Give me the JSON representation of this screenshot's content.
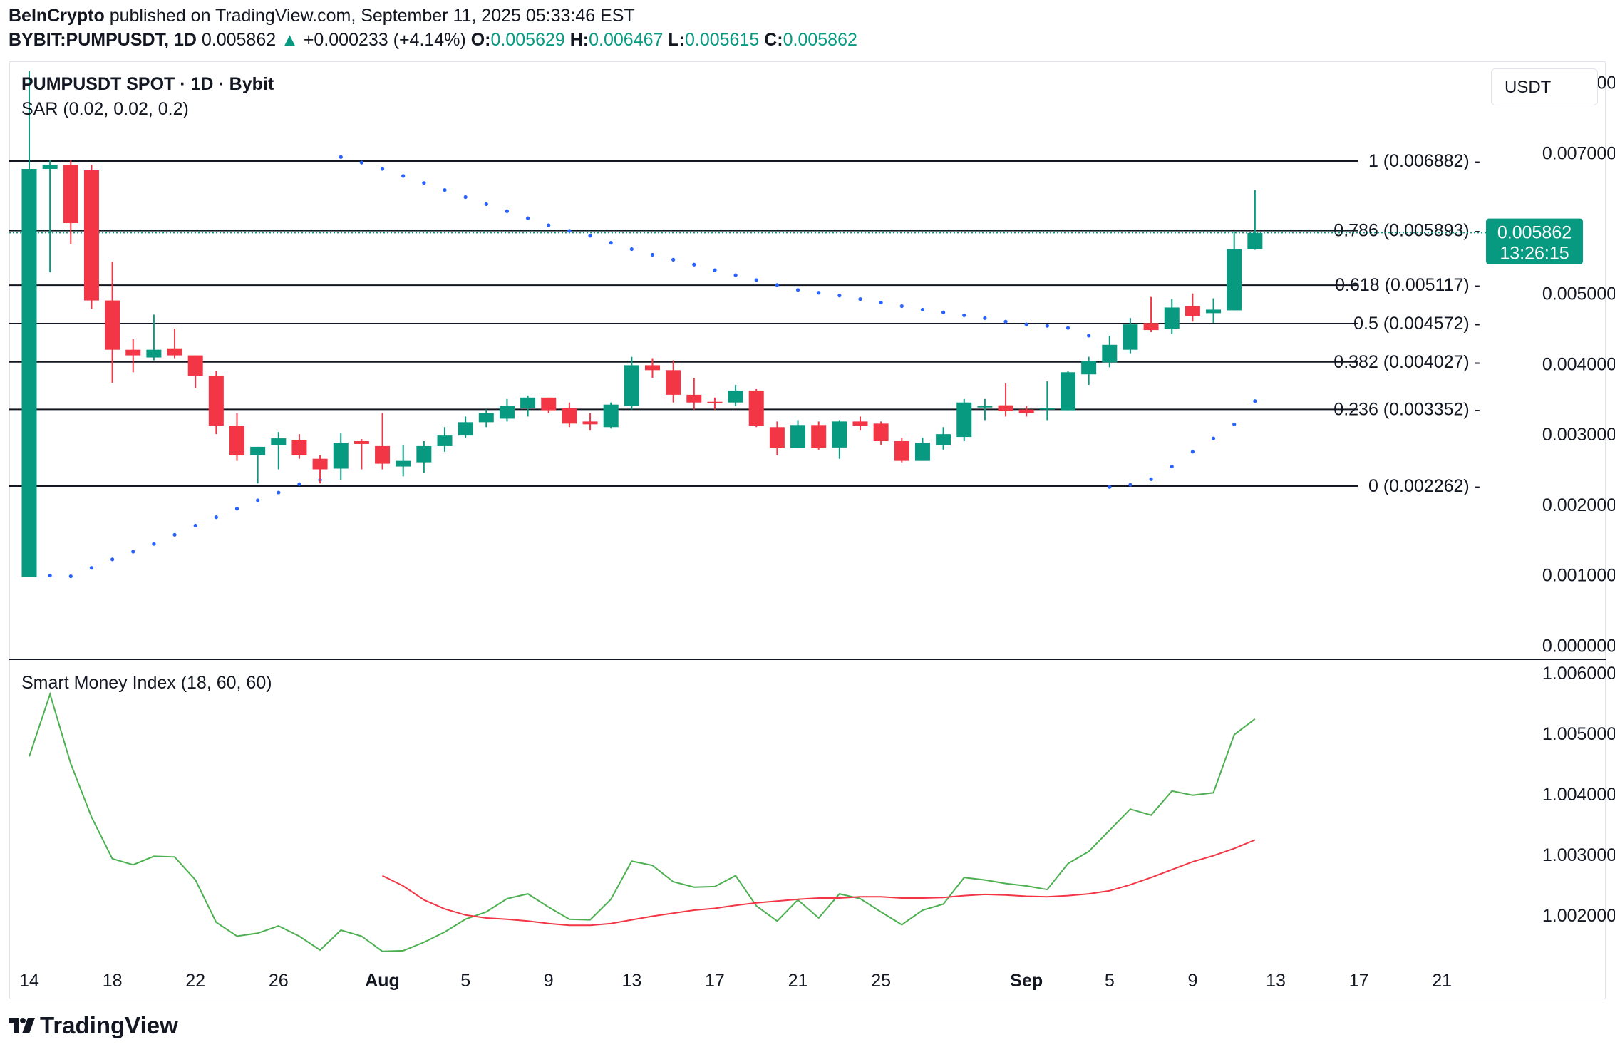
{
  "header": {
    "publisher": "BeInCrypto",
    "published_text": "published on TradingView.com, September 11, 2025 05:33:46 EST",
    "symbol": "BYBIT:PUMPUSDT, 1D",
    "last_price": "0.005862",
    "change": "+0.000233 (+4.14%)",
    "open_label": "O:",
    "open": "0.005629",
    "high_label": "H:",
    "high": "0.006467",
    "low_label": "L:",
    "low": "0.005615",
    "close_label": "C:",
    "close": "0.005862"
  },
  "pane": {
    "title": "PUMPUSDT SPOT · 1D · Bybit",
    "sar_label": "SAR (0.02, 0.02, 0.2)",
    "smi_label": "Smart Money Index (18, 60, 60)",
    "currency": "USDT",
    "price_tag": "0.005862",
    "countdown": "13:26:15"
  },
  "colors": {
    "up": "#089981",
    "down": "#f23645",
    "sar": "#2962ff",
    "smi": "#4caf50",
    "smi_signal": "#f23645",
    "fib_line": "#131722"
  },
  "chart_data": [
    {
      "type": "candlestick",
      "title": "PUMPUSDT SPOT · 1D · Bybit",
      "ylim": [
        -0.0002,
        0.0083
      ],
      "y_ticks": [
        "0.008000",
        "0.007000",
        "0.005000",
        "0.004000",
        "0.003000",
        "0.002000",
        "0.001000",
        "0.000000"
      ],
      "y_tick_values": [
        0.008,
        0.007,
        0.005,
        0.004,
        0.003,
        0.002,
        0.001,
        0.0
      ],
      "x_ticks": [
        "14",
        "18",
        "22",
        "26",
        "Aug",
        "5",
        "9",
        "13",
        "17",
        "21",
        "25",
        "Sep",
        "5",
        "9",
        "13",
        "17",
        "21"
      ],
      "x_tick_index": [
        0,
        4,
        8,
        12,
        17,
        21,
        25,
        29,
        33,
        37,
        41,
        48,
        52,
        56,
        60,
        64,
        68
      ],
      "candles": [
        {
          "o": 0.00097,
          "h": 0.00816,
          "l": 0.00097,
          "c": 0.00677
        },
        {
          "o": 0.00677,
          "h": 0.0069,
          "l": 0.0053,
          "c": 0.00683
        },
        {
          "o": 0.00683,
          "h": 0.0069,
          "l": 0.0057,
          "c": 0.006
        },
        {
          "o": 0.00675,
          "h": 0.00683,
          "l": 0.00478,
          "c": 0.0049
        },
        {
          "o": 0.0049,
          "h": 0.00545,
          "l": 0.00373,
          "c": 0.0042
        },
        {
          "o": 0.0042,
          "h": 0.00435,
          "l": 0.00388,
          "c": 0.00412
        },
        {
          "o": 0.00409,
          "h": 0.0047,
          "l": 0.00405,
          "c": 0.0042
        },
        {
          "o": 0.00422,
          "h": 0.0045,
          "l": 0.00408,
          "c": 0.00412
        },
        {
          "o": 0.00412,
          "h": 0.00412,
          "l": 0.00365,
          "c": 0.00383
        },
        {
          "o": 0.00383,
          "h": 0.0039,
          "l": 0.003,
          "c": 0.00312
        },
        {
          "o": 0.00312,
          "h": 0.0033,
          "l": 0.00262,
          "c": 0.0027
        },
        {
          "o": 0.0027,
          "h": 0.00282,
          "l": 0.0023,
          "c": 0.00282
        },
        {
          "o": 0.00284,
          "h": 0.00303,
          "l": 0.0025,
          "c": 0.00294
        },
        {
          "o": 0.00292,
          "h": 0.003,
          "l": 0.00265,
          "c": 0.0027
        },
        {
          "o": 0.00265,
          "h": 0.0027,
          "l": 0.0023,
          "c": 0.0025
        },
        {
          "o": 0.00251,
          "h": 0.00301,
          "l": 0.00235,
          "c": 0.00288
        },
        {
          "o": 0.0029,
          "h": 0.00293,
          "l": 0.0025,
          "c": 0.00286
        },
        {
          "o": 0.00283,
          "h": 0.0033,
          "l": 0.0025,
          "c": 0.00258
        },
        {
          "o": 0.00254,
          "h": 0.00285,
          "l": 0.0024,
          "c": 0.00262
        },
        {
          "o": 0.0026,
          "h": 0.0029,
          "l": 0.00245,
          "c": 0.00283
        },
        {
          "o": 0.00283,
          "h": 0.0031,
          "l": 0.00275,
          "c": 0.00298
        },
        {
          "o": 0.00298,
          "h": 0.00325,
          "l": 0.00295,
          "c": 0.00317
        },
        {
          "o": 0.00317,
          "h": 0.00335,
          "l": 0.0031,
          "c": 0.0033
        },
        {
          "o": 0.00322,
          "h": 0.0035,
          "l": 0.00318,
          "c": 0.0034
        },
        {
          "o": 0.00337,
          "h": 0.00355,
          "l": 0.00325,
          "c": 0.00352
        },
        {
          "o": 0.00352,
          "h": 0.00352,
          "l": 0.0033,
          "c": 0.00334
        },
        {
          "o": 0.00337,
          "h": 0.00345,
          "l": 0.0031,
          "c": 0.00315
        },
        {
          "o": 0.00318,
          "h": 0.0033,
          "l": 0.00305,
          "c": 0.00314
        },
        {
          "o": 0.0031,
          "h": 0.00345,
          "l": 0.00308,
          "c": 0.00342
        },
        {
          "o": 0.0034,
          "h": 0.0041,
          "l": 0.00335,
          "c": 0.00398
        },
        {
          "o": 0.00398,
          "h": 0.00408,
          "l": 0.0038,
          "c": 0.00391
        },
        {
          "o": 0.00391,
          "h": 0.00405,
          "l": 0.00345,
          "c": 0.00356
        },
        {
          "o": 0.00356,
          "h": 0.0038,
          "l": 0.00335,
          "c": 0.00345
        },
        {
          "o": 0.00346,
          "h": 0.00352,
          "l": 0.00335,
          "c": 0.00345
        },
        {
          "o": 0.00345,
          "h": 0.0037,
          "l": 0.0034,
          "c": 0.00362
        },
        {
          "o": 0.00362,
          "h": 0.00364,
          "l": 0.0031,
          "c": 0.00312
        },
        {
          "o": 0.0031,
          "h": 0.00318,
          "l": 0.0027,
          "c": 0.0028
        },
        {
          "o": 0.0028,
          "h": 0.0032,
          "l": 0.0028,
          "c": 0.00313
        },
        {
          "o": 0.00313,
          "h": 0.00318,
          "l": 0.00278,
          "c": 0.0028
        },
        {
          "o": 0.00281,
          "h": 0.0032,
          "l": 0.00265,
          "c": 0.00318
        },
        {
          "o": 0.00318,
          "h": 0.00325,
          "l": 0.00305,
          "c": 0.00312
        },
        {
          "o": 0.00315,
          "h": 0.00318,
          "l": 0.00285,
          "c": 0.0029
        },
        {
          "o": 0.0029,
          "h": 0.00295,
          "l": 0.0026,
          "c": 0.00262
        },
        {
          "o": 0.00262,
          "h": 0.00295,
          "l": 0.00262,
          "c": 0.00288
        },
        {
          "o": 0.00284,
          "h": 0.0031,
          "l": 0.00278,
          "c": 0.003
        },
        {
          "o": 0.00296,
          "h": 0.0035,
          "l": 0.0029,
          "c": 0.00345
        },
        {
          "o": 0.00339,
          "h": 0.0035,
          "l": 0.0032,
          "c": 0.0034
        },
        {
          "o": 0.00341,
          "h": 0.00372,
          "l": 0.00325,
          "c": 0.00333
        },
        {
          "o": 0.00335,
          "h": 0.0034,
          "l": 0.00325,
          "c": 0.0033
        },
        {
          "o": 0.00336,
          "h": 0.00375,
          "l": 0.0032,
          "c": 0.00337
        },
        {
          "o": 0.00334,
          "h": 0.0039,
          "l": 0.00334,
          "c": 0.00388
        },
        {
          "o": 0.00385,
          "h": 0.0041,
          "l": 0.0037,
          "c": 0.00404
        },
        {
          "o": 0.00402,
          "h": 0.0044,
          "l": 0.00395,
          "c": 0.00427
        },
        {
          "o": 0.0042,
          "h": 0.00465,
          "l": 0.00415,
          "c": 0.00456
        },
        {
          "o": 0.00458,
          "h": 0.00495,
          "l": 0.00445,
          "c": 0.00448
        },
        {
          "o": 0.0045,
          "h": 0.00492,
          "l": 0.00442,
          "c": 0.0048
        },
        {
          "o": 0.00482,
          "h": 0.005,
          "l": 0.0046,
          "c": 0.00468
        },
        {
          "o": 0.00472,
          "h": 0.00493,
          "l": 0.00458,
          "c": 0.00477
        },
        {
          "o": 0.00476,
          "h": 0.00587,
          "l": 0.00476,
          "c": 0.00563
        },
        {
          "o": 0.00563,
          "h": 0.00647,
          "l": 0.00562,
          "c": 0.00586
        }
      ],
      "sar": [
        {
          "i": 1,
          "v": 0.00099
        },
        {
          "i": 2,
          "v": 0.00098
        },
        {
          "i": 3,
          "v": 0.0011
        },
        {
          "i": 4,
          "v": 0.00122
        },
        {
          "i": 5,
          "v": 0.00133
        },
        {
          "i": 6,
          "v": 0.00144
        },
        {
          "i": 7,
          "v": 0.00157
        },
        {
          "i": 8,
          "v": 0.0017
        },
        {
          "i": 9,
          "v": 0.00182
        },
        {
          "i": 10,
          "v": 0.00194
        },
        {
          "i": 11,
          "v": 0.00206
        },
        {
          "i": 12,
          "v": 0.00217
        },
        {
          "i": 13,
          "v": 0.00229
        },
        {
          "i": 14,
          "v": 0.00235
        },
        {
          "i": 15,
          "v": 0.00694
        },
        {
          "i": 16,
          "v": 0.00686
        },
        {
          "i": 17,
          "v": 0.00677
        },
        {
          "i": 18,
          "v": 0.00667
        },
        {
          "i": 19,
          "v": 0.00657
        },
        {
          "i": 20,
          "v": 0.00647
        },
        {
          "i": 21,
          "v": 0.00637
        },
        {
          "i": 22,
          "v": 0.00627
        },
        {
          "i": 23,
          "v": 0.00617
        },
        {
          "i": 24,
          "v": 0.00607
        },
        {
          "i": 25,
          "v": 0.00597
        },
        {
          "i": 26,
          "v": 0.00589
        },
        {
          "i": 27,
          "v": 0.00582
        },
        {
          "i": 28,
          "v": 0.00572
        },
        {
          "i": 29,
          "v": 0.00563
        },
        {
          "i": 30,
          "v": 0.00555
        },
        {
          "i": 31,
          "v": 0.00548
        },
        {
          "i": 32,
          "v": 0.00541
        },
        {
          "i": 33,
          "v": 0.00533
        },
        {
          "i": 34,
          "v": 0.00526
        },
        {
          "i": 35,
          "v": 0.00519
        },
        {
          "i": 36,
          "v": 0.00512
        },
        {
          "i": 37,
          "v": 0.00505
        },
        {
          "i": 38,
          "v": 0.00501
        },
        {
          "i": 39,
          "v": 0.00497
        },
        {
          "i": 40,
          "v": 0.00492
        },
        {
          "i": 41,
          "v": 0.00487
        },
        {
          "i": 42,
          "v": 0.00482
        },
        {
          "i": 43,
          "v": 0.00477
        },
        {
          "i": 44,
          "v": 0.00473
        },
        {
          "i": 45,
          "v": 0.00469
        },
        {
          "i": 46,
          "v": 0.00465
        },
        {
          "i": 47,
          "v": 0.0046
        },
        {
          "i": 48,
          "v": 0.00456
        },
        {
          "i": 49,
          "v": 0.00454
        },
        {
          "i": 50,
          "v": 0.00451
        },
        {
          "i": 51,
          "v": 0.0044
        },
        {
          "i": 52,
          "v": 0.00225
        },
        {
          "i": 53,
          "v": 0.00228
        },
        {
          "i": 54,
          "v": 0.00236
        },
        {
          "i": 55,
          "v": 0.00254
        },
        {
          "i": 56,
          "v": 0.00275
        },
        {
          "i": 57,
          "v": 0.00294
        },
        {
          "i": 58,
          "v": 0.00314
        },
        {
          "i": 59,
          "v": 0.00347
        }
      ],
      "fib_levels": [
        {
          "label": "1 (0.006882)",
          "value": 0.006882
        },
        {
          "label": "0.786 (0.005893)",
          "value": 0.005893
        },
        {
          "label": "0.618 (0.005117)",
          "value": 0.005117
        },
        {
          "label": "0.5 (0.004572)",
          "value": 0.004572
        },
        {
          "label": "0.382 (0.004027)",
          "value": 0.004027
        },
        {
          "label": "0.236 (0.003352)",
          "value": 0.003352
        },
        {
          "label": "0 (0.002262)",
          "value": 0.002262
        }
      ],
      "last_close": 0.005862
    },
    {
      "type": "line",
      "title": "Smart Money Index (18, 60, 60)",
      "ylim": [
        1.00122,
        1.00605
      ],
      "y_ticks": [
        "1.006000",
        "1.005000",
        "1.004000",
        "1.003000",
        "1.002000"
      ],
      "y_tick_values": [
        1.006,
        1.005,
        1.004,
        1.003,
        1.002
      ],
      "series": [
        {
          "color": "#4caf50",
          "start_index": 0,
          "values": [
            1.00462,
            1.00565,
            1.0045,
            1.00362,
            1.00293,
            1.00283,
            1.00297,
            1.00296,
            1.00258,
            1.00188,
            1.00165,
            1.0017,
            1.00182,
            1.00165,
            1.00142,
            1.00175,
            1.00165,
            1.0014,
            1.00141,
            1.00155,
            1.00172,
            1.00193,
            1.00205,
            1.00227,
            1.00235,
            1.00213,
            1.00193,
            1.00192,
            1.00226,
            1.00289,
            1.00282,
            1.00255,
            1.00246,
            1.00247,
            1.00265,
            1.00215,
            1.0019,
            1.00225,
            1.00195,
            1.00235,
            1.00227,
            1.00205,
            1.00184,
            1.00208,
            1.00218,
            1.00262,
            1.00258,
            1.00252,
            1.00248,
            1.00242,
            1.00285,
            1.00305,
            1.0034,
            1.00375,
            1.00365,
            1.00405,
            1.00398,
            1.00402,
            1.00498,
            1.00524
          ]
        },
        {
          "color": "#f23645",
          "start_index": 17,
          "values": [
            1.00265,
            1.00248,
            1.00225,
            1.0021,
            1.002,
            1.00195,
            1.00193,
            1.0019,
            1.00186,
            1.00183,
            1.00183,
            1.00186,
            1.00192,
            1.00198,
            1.00203,
            1.00208,
            1.00211,
            1.00216,
            1.0022,
            1.00223,
            1.00226,
            1.00228,
            1.00228,
            1.0023,
            1.0023,
            1.00228,
            1.00228,
            1.00229,
            1.00232,
            1.00234,
            1.00233,
            1.00231,
            1.0023,
            1.00232,
            1.00235,
            1.0024,
            1.0025,
            1.00262,
            1.00275,
            1.00288,
            1.00298,
            1.0031,
            1.00324
          ]
        }
      ]
    }
  ]
}
